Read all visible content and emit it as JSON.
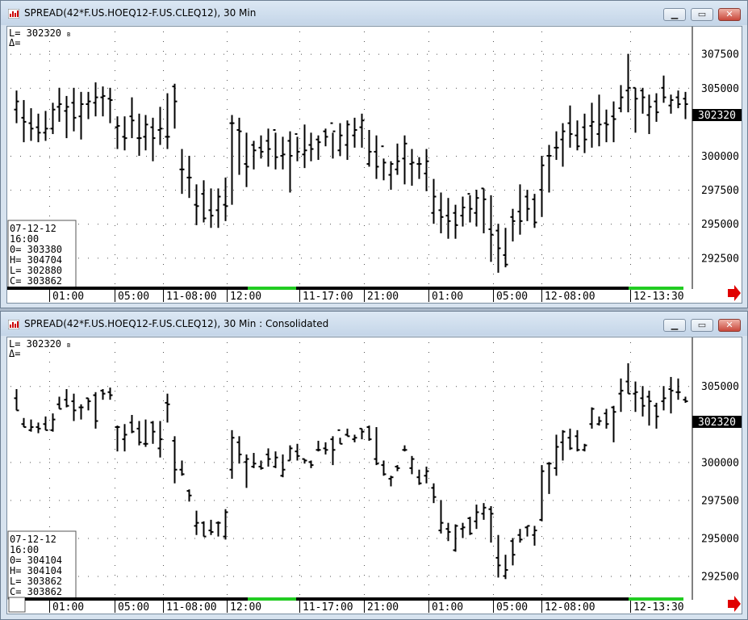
{
  "windows": [
    {
      "title": "SPREAD(42*F.US.HOEQ12-F.US.CLEQ12), 30 Min",
      "info_last": "L=  302320",
      "info_delta": "Δ=",
      "ohlc_box": {
        "date": "07-12-12",
        "time": "16:00",
        "open": "0=  303380",
        "high": "H=  304704",
        "low": "L=  302880",
        "close": "C=  303862"
      },
      "price_tag": "302320",
      "y_ticks": [
        "307500",
        "305000",
        "302320",
        "300000",
        "297500",
        "295000",
        "292500"
      ],
      "x_ticks": [
        "01:00",
        "05:00",
        "11-08:00",
        "12:00",
        "11-17:00",
        "21:00",
        "01:00",
        "05:00",
        "12-08:00",
        "12-13:30"
      ]
    },
    {
      "title": "SPREAD(42*F.US.HOEQ12-F.US.CLEQ12), 30 Min : Consolidated",
      "info_last": "L=  302320",
      "info_delta": "Δ=",
      "ohlc_box": {
        "date": "07-12-12",
        "time": "16:00",
        "open": "0=  304104",
        "high": "H=  304104",
        "low": "L=  303862",
        "close": "C=  303862"
      },
      "price_tag": "302320",
      "y_ticks": [
        "305000",
        "302320",
        "300000",
        "297500",
        "295000",
        "292500"
      ],
      "x_ticks": [
        "01:00",
        "05:00",
        "11-08:00",
        "12:00",
        "11-17:00",
        "21:00",
        "01:00",
        "05:00",
        "12-08:00",
        "12-13:30"
      ]
    }
  ],
  "colors": {
    "accent_green": "#22cc22",
    "price_tag_bg": "#000000",
    "arrow": "#e00000",
    "bars": "#000000"
  },
  "icons": {
    "window_icon": "chart-window-icon",
    "minimize": "minimize-icon",
    "maximize": "maximize-icon",
    "close": "close-icon",
    "scroll_arrow": "red-right-arrow-icon"
  },
  "chart_data": [
    {
      "type": "ohlc",
      "y_axis_ticks": [
        307500,
        305000,
        302320,
        300000,
        297500,
        295000,
        292500
      ],
      "ylim": [
        290500,
        309500
      ],
      "bars": [
        [
          303400,
          304800,
          302400,
          304000
        ],
        [
          302800,
          304100,
          301000,
          302500
        ],
        [
          302400,
          303500,
          301100,
          302000
        ],
        [
          302100,
          303100,
          301000,
          301700
        ],
        [
          301700,
          303300,
          301100,
          302000
        ],
        [
          302000,
          303900,
          301600,
          303400
        ],
        [
          303600,
          305000,
          302500,
          303800
        ],
        [
          303300,
          304400,
          301300,
          303600
        ],
        [
          303900,
          305000,
          301800,
          302800
        ],
        [
          302900,
          304700,
          301200,
          303800
        ],
        [
          303800,
          304700,
          302700,
          304000
        ],
        [
          303900,
          305400,
          302900,
          304300
        ],
        [
          304300,
          305100,
          302900,
          304400
        ],
        [
          304200,
          305000,
          302400,
          304100
        ],
        [
          302100,
          302900,
          300500,
          302200
        ],
        [
          301400,
          302900,
          300400,
          301300
        ],
        [
          302900,
          304300,
          301300,
          302600
        ],
        [
          301300,
          303100,
          300000,
          301300
        ],
        [
          301400,
          303000,
          300400,
          302300
        ],
        [
          302100,
          302800,
          299600,
          301300
        ],
        [
          301900,
          303600,
          300800,
          302000
        ],
        [
          301400,
          304600,
          300500,
          301400
        ],
        [
          305100,
          305300,
          302000,
          304000
        ],
        [
          299000,
          300500,
          297200,
          299000
        ],
        [
          298400,
          300000,
          296900,
          298400
        ],
        [
          296400,
          297900,
          294900,
          296300
        ],
        [
          297200,
          298200,
          295100,
          295400
        ],
        [
          296000,
          297600,
          294700,
          295600
        ],
        [
          296000,
          297600,
          294700,
          297000
        ],
        [
          296400,
          298400,
          295200,
          296300
        ],
        [
          302400,
          303000,
          296400,
          302400
        ],
        [
          301900,
          302800,
          298600,
          301800
        ],
        [
          299400,
          301700,
          297700,
          299200
        ],
        [
          300800,
          301100,
          299000,
          300400
        ],
        [
          300600,
          301500,
          299800,
          300300
        ],
        [
          301100,
          302000,
          299200,
          300500
        ],
        [
          301900,
          301700,
          299000,
          299900
        ],
        [
          300000,
          301400,
          299000,
          300100
        ],
        [
          301100,
          301800,
          297300,
          300000
        ],
        [
          301600,
          301400,
          299600,
          300300
        ],
        [
          300100,
          302300,
          299100,
          300400
        ],
        [
          300800,
          301700,
          299600,
          300500
        ],
        [
          301200,
          301500,
          299700,
          301000
        ],
        [
          301800,
          302000,
          300700,
          301400
        ],
        [
          302400,
          301700,
          299800,
          301800
        ],
        [
          300400,
          302400,
          300000,
          301500
        ],
        [
          300800,
          302600,
          299700,
          302300
        ],
        [
          301500,
          302800,
          300600,
          301900
        ],
        [
          302100,
          303100,
          300600,
          302600
        ],
        [
          299400,
          301900,
          299200,
          300300
        ],
        [
          300300,
          301500,
          298300,
          299200
        ],
        [
          300700,
          299800,
          298200,
          299500
        ],
        [
          298600,
          299600,
          297500,
          299400
        ],
        [
          299000,
          300900,
          298600,
          299600
        ],
        [
          299800,
          301500,
          297900,
          300900
        ],
        [
          299400,
          300500,
          297800,
          299500
        ],
        [
          299400,
          299900,
          298300,
          299400
        ],
        [
          298700,
          300500,
          297400,
          299600
        ],
        [
          295800,
          298300,
          295000,
          297000
        ],
        [
          296000,
          297300,
          294300,
          295500
        ],
        [
          295600,
          296900,
          293900,
          295200
        ],
        [
          295800,
          296400,
          293900,
          294900
        ],
        [
          295600,
          297000,
          294800,
          296200
        ],
        [
          297200,
          297100,
          295100,
          296100
        ],
        [
          295800,
          297500,
          294800,
          296900
        ],
        [
          297600,
          297600,
          294300,
          296800
        ],
        [
          294600,
          297100,
          292200,
          294200
        ],
        [
          294500,
          295000,
          291400,
          293200
        ],
        [
          292700,
          294700,
          291800,
          292000
        ],
        [
          295500,
          296100,
          293700,
          295200
        ],
        [
          295900,
          297900,
          294200,
          295200
        ],
        [
          297000,
          297500,
          295200,
          296100
        ],
        [
          296800,
          297200,
          294700,
          295100
        ],
        [
          297500,
          300000,
          295500,
          299300
        ],
        [
          300000,
          300800,
          297300,
          300000
        ],
        [
          300600,
          301800,
          299700,
          300600
        ],
        [
          301200,
          302400,
          299200,
          301800
        ],
        [
          302400,
          303700,
          300600,
          301600
        ],
        [
          301500,
          302600,
          300400,
          300700
        ],
        [
          302100,
          303100,
          300200,
          301200
        ],
        [
          302200,
          303900,
          300600,
          302500
        ],
        [
          301600,
          304500,
          300700,
          302300
        ],
        [
          302400,
          303400,
          301000,
          302300
        ],
        [
          302900,
          304000,
          301000,
          302700
        ],
        [
          303500,
          305200,
          303200,
          304300
        ],
        [
          304800,
          307500,
          303200,
          305000
        ],
        [
          305000,
          305000,
          301700,
          304200
        ],
        [
          304800,
          305000,
          303100,
          304300
        ],
        [
          303000,
          304500,
          301600,
          303600
        ],
        [
          304000,
          304600,
          302500,
          303200
        ],
        [
          305000,
          305900,
          303900,
          304300
        ],
        [
          303700,
          304500,
          303100,
          304100
        ],
        [
          304300,
          304800,
          303500,
          303800
        ],
        [
          304200,
          304700,
          302700,
          303800
        ]
      ]
    },
    {
      "type": "ohlc",
      "y_axis_ticks": [
        305000,
        302320,
        300000,
        297500,
        295000,
        292500
      ],
      "ylim": [
        291200,
        308200
      ],
      "bars": [
        [
          304200,
          304800,
          303400,
          303400
        ],
        [
          302500,
          302900,
          302300,
          302300
        ],
        [
          302100,
          302800,
          302000,
          302300
        ],
        [
          302300,
          302600,
          301900,
          302200
        ],
        [
          302500,
          303000,
          302100,
          302100
        ],
        [
          302100,
          303200,
          302000,
          302800
        ],
        [
          303800,
          304300,
          303500,
          303500
        ],
        [
          304100,
          304800,
          303600,
          303700
        ],
        [
          304000,
          304500,
          302700,
          303400
        ],
        [
          303600,
          303800,
          302800,
          303600
        ],
        [
          304200,
          304200,
          303400,
          304000
        ],
        [
          304400,
          304600,
          302200,
          302700
        ],
        [
          304700,
          304800,
          304100,
          304500
        ],
        [
          304600,
          304900,
          304100,
          304400
        ],
        [
          302300,
          302400,
          300700,
          302300
        ],
        [
          301500,
          302500,
          300700,
          301800
        ],
        [
          302600,
          303100,
          301900,
          302000
        ],
        [
          302200,
          302700,
          301100,
          301300
        ],
        [
          301200,
          302800,
          301000,
          301200
        ],
        [
          302600,
          302700,
          301200,
          302000
        ],
        [
          300900,
          302700,
          300300,
          301500
        ],
        [
          303900,
          304500,
          302600,
          303800
        ],
        [
          301400,
          301700,
          298600,
          299500
        ],
        [
          299500,
          300100,
          299100,
          299200
        ],
        [
          298100,
          298200,
          297400,
          297800
        ],
        [
          295800,
          296800,
          295200,
          296000
        ],
        [
          296000,
          296100,
          295100,
          295100
        ],
        [
          295500,
          296200,
          295200,
          295400
        ],
        [
          296000,
          296100,
          295100,
          296000
        ],
        [
          295100,
          296900,
          294900,
          296700
        ],
        [
          299500,
          302100,
          298900,
          301600
        ],
        [
          301300,
          301700,
          299900,
          300500
        ],
        [
          300000,
          300500,
          298300,
          300200
        ],
        [
          299700,
          300600,
          299600,
          299900
        ],
        [
          299700,
          300100,
          299500,
          299600
        ],
        [
          300500,
          300900,
          299700,
          300200
        ],
        [
          299700,
          300700,
          299600,
          300300
        ],
        [
          299100,
          300500,
          299000,
          299500
        ],
        [
          300100,
          301100,
          300100,
          300900
        ],
        [
          300700,
          301200,
          300100,
          300400
        ],
        [
          300200,
          300200,
          299900,
          300100
        ],
        [
          300000,
          300100,
          299600,
          299800
        ],
        [
          300800,
          301400,
          300700,
          300800
        ],
        [
          300900,
          301300,
          300500,
          300800
        ],
        [
          301500,
          301700,
          299800,
          300800
        ],
        [
          302100,
          301600,
          301200,
          301200
        ],
        [
          301800,
          302200,
          301700,
          301700
        ],
        [
          301500,
          301800,
          301300,
          301600
        ],
        [
          302200,
          302200,
          301500,
          302000
        ],
        [
          302300,
          302400,
          301400,
          301500
        ],
        [
          300200,
          302300,
          299800,
          299900
        ],
        [
          299800,
          300100,
          299100,
          299200
        ],
        [
          298900,
          299100,
          298400,
          299000
        ],
        [
          299700,
          299800,
          299400,
          299600
        ],
        [
          300800,
          301100,
          300700,
          300800
        ],
        [
          299600,
          300400,
          299200,
          300200
        ],
        [
          299000,
          299500,
          298500,
          298600
        ],
        [
          299100,
          299700,
          298600,
          299400
        ],
        [
          298300,
          298600,
          297300,
          297700
        ],
        [
          295500,
          297500,
          295300,
          296000
        ],
        [
          295600,
          296000,
          294800,
          295400
        ],
        [
          294200,
          295900,
          294100,
          295800
        ],
        [
          295600,
          296000,
          295000,
          295700
        ],
        [
          296300,
          296400,
          295200,
          295300
        ],
        [
          296100,
          297200,
          295600,
          296700
        ],
        [
          296600,
          297300,
          296200,
          297000
        ],
        [
          296900,
          297100,
          294700,
          296600
        ],
        [
          293700,
          295200,
          292400,
          293200
        ],
        [
          292500,
          293900,
          292300,
          292900
        ],
        [
          294800,
          295000,
          293200,
          293900
        ],
        [
          295200,
          295600,
          294700,
          294900
        ],
        [
          295700,
          295800,
          295100,
          295800
        ],
        [
          295200,
          295800,
          294500,
          295500
        ],
        [
          296200,
          299800,
          296100,
          299400
        ],
        [
          299900,
          300000,
          297900,
          299900
        ],
        [
          299600,
          301800,
          299100,
          301000
        ],
        [
          301300,
          302100,
          300100,
          302000
        ],
        [
          301600,
          302200,
          300800,
          300900
        ],
        [
          301700,
          302100,
          300700,
          300800
        ],
        [
          300800,
          301200,
          300700,
          301100
        ],
        [
          302500,
          303600,
          302200,
          303500
        ],
        [
          302500,
          303000,
          302400,
          302700
        ],
        [
          303200,
          303500,
          302200,
          302500
        ],
        [
          303600,
          303700,
          301300,
          303300
        ],
        [
          304500,
          305500,
          303300,
          304700
        ],
        [
          305300,
          306500,
          304500,
          304500
        ],
        [
          304500,
          305300,
          303300,
          304600
        ],
        [
          304200,
          305000,
          303000,
          303700
        ],
        [
          304300,
          304700,
          302400,
          304000
        ],
        [
          303700,
          303900,
          302200,
          303000
        ],
        [
          304000,
          305000,
          303400,
          304200
        ],
        [
          304800,
          305600,
          303200,
          304700
        ],
        [
          304600,
          305500,
          304100,
          304600
        ],
        [
          304100,
          304300,
          303900,
          304000
        ]
      ]
    }
  ]
}
